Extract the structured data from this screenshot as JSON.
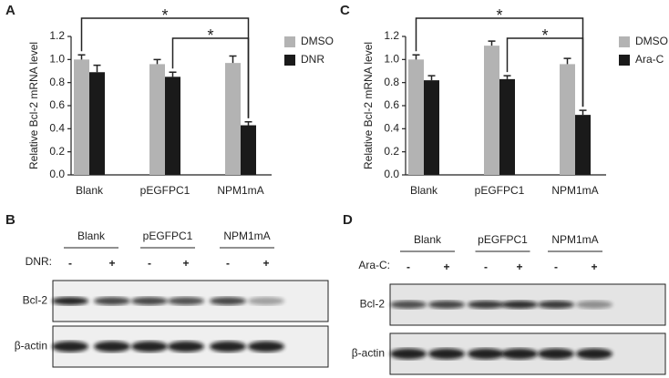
{
  "chart_data": [
    {
      "type": "bar",
      "panel": "A",
      "ylabel": "Relative Bcl-2 mRNA level",
      "categories": [
        "Blank",
        "pEGFPC1",
        "NPM1mA"
      ],
      "series": [
        {
          "name": "DMSO",
          "color": "#b3b3b3",
          "values": [
            1.0,
            0.96,
            0.97
          ],
          "errors": [
            0.04,
            0.04,
            0.06
          ]
        },
        {
          "name": "DNR",
          "color": "#1a1a1a",
          "values": [
            0.89,
            0.85,
            0.43
          ],
          "errors": [
            0.06,
            0.04,
            0.03
          ]
        }
      ],
      "ylim": [
        0,
        1.2
      ],
      "yticks": [
        {
          "value": 0,
          "label": "0.0"
        },
        {
          "value": 0.2,
          "label": "0.2"
        },
        {
          "value": 0.4,
          "label": "0.4"
        },
        {
          "value": 0.6,
          "label": "0.6"
        },
        {
          "value": 0.8,
          "label": "0.8"
        },
        {
          "value": 1.0,
          "label": "1.0"
        },
        {
          "value": 1.2,
          "label": "1.2"
        }
      ],
      "annotations": [
        "*",
        "*"
      ]
    },
    {
      "type": "bar",
      "panel": "C",
      "ylabel": "Relative Bcl-2 mRNA level",
      "categories": [
        "Blank",
        "pEGFPC1",
        "NPM1mA"
      ],
      "series": [
        {
          "name": "DMSO",
          "color": "#b3b3b3",
          "values": [
            1.0,
            1.12,
            0.96
          ],
          "errors": [
            0.04,
            0.04,
            0.05
          ]
        },
        {
          "name": "Ara-C",
          "color": "#1a1a1a",
          "values": [
            0.82,
            0.83,
            0.52
          ],
          "errors": [
            0.04,
            0.03,
            0.04
          ]
        }
      ],
      "ylim": [
        0,
        1.2
      ],
      "yticks": [
        {
          "value": 0,
          "label": "0.0"
        },
        {
          "value": 0.2,
          "label": "0.2"
        },
        {
          "value": 0.4,
          "label": "0.4"
        },
        {
          "value": 0.6,
          "label": "0.6"
        },
        {
          "value": 0.8,
          "label": "0.8"
        },
        {
          "value": 1.0,
          "label": "1.0"
        },
        {
          "value": 1.2,
          "label": "1.2"
        }
      ],
      "annotations": [
        "*",
        "*"
      ]
    }
  ],
  "blots": [
    {
      "panel": "B",
      "groups": [
        "Blank",
        "pEGFPC1",
        "NPM1mA"
      ],
      "treatment": "DNR:",
      "signs": [
        "-",
        "+",
        "-",
        "+",
        "-",
        "+"
      ],
      "rows": [
        "Bcl-2",
        "β-actin"
      ]
    },
    {
      "panel": "D",
      "groups": [
        "Blank",
        "pEGFPC1",
        "NPM1mA"
      ],
      "treatment": "Ara-C:",
      "signs": [
        "-",
        "+",
        "-",
        "+",
        "-",
        "+"
      ],
      "rows": [
        "Bcl-2",
        "β-actin"
      ]
    }
  ]
}
